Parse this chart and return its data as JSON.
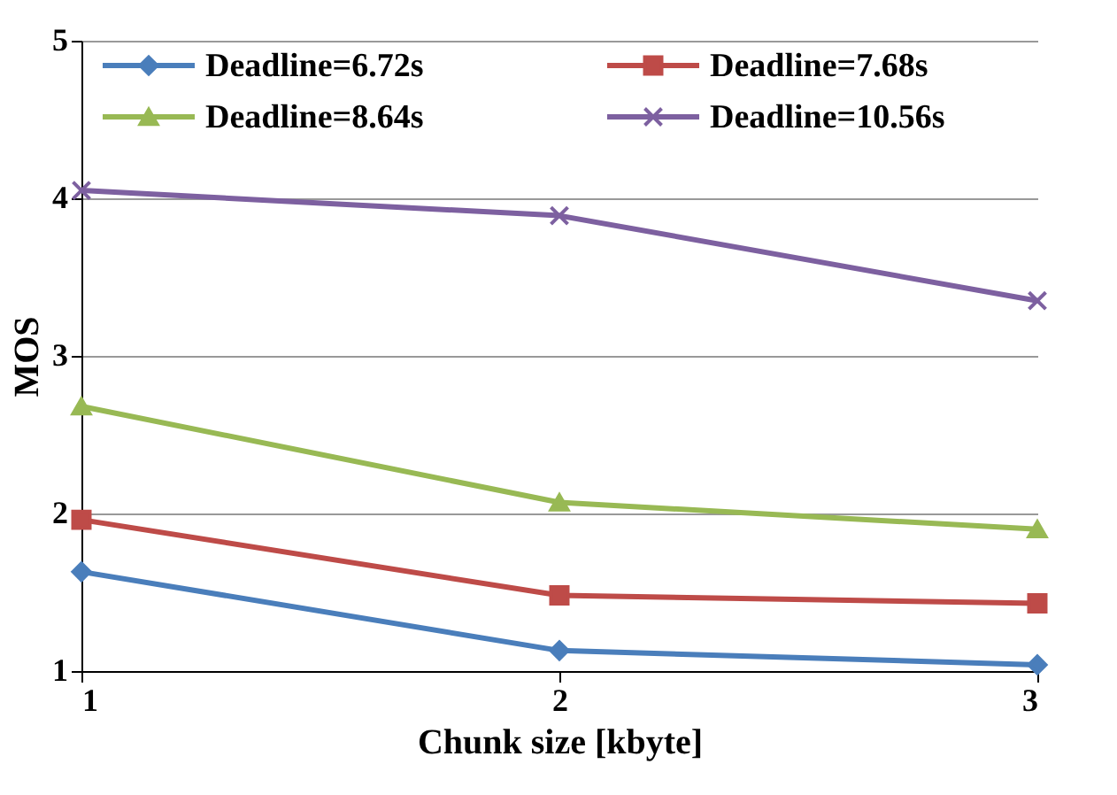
{
  "chart_data": {
    "type": "line",
    "xlabel": "Chunk size [kbyte]",
    "ylabel": "MOS",
    "x": [
      1,
      2,
      3
    ],
    "xlim": [
      1,
      3
    ],
    "xticks": [
      1,
      2,
      3
    ],
    "ylim": [
      1,
      5
    ],
    "yticks": [
      1,
      2,
      3,
      4,
      5
    ],
    "grid": "y",
    "legend": "top",
    "series": [
      {
        "name": "Deadline=6.72s",
        "color": "#4a7ebb",
        "marker": "diamond",
        "values": [
          1.63,
          1.13,
          1.04
        ]
      },
      {
        "name": "Deadline=7.68s",
        "color": "#be4b48",
        "marker": "square",
        "values": [
          1.96,
          1.48,
          1.43
        ]
      },
      {
        "name": "Deadline=8.64s",
        "color": "#98b954",
        "marker": "triangle",
        "values": [
          2.68,
          2.07,
          1.9
        ]
      },
      {
        "name": "Deadline=10.56s",
        "color": "#7d60a0",
        "marker": "cross",
        "values": [
          4.05,
          3.89,
          3.35
        ]
      }
    ]
  }
}
